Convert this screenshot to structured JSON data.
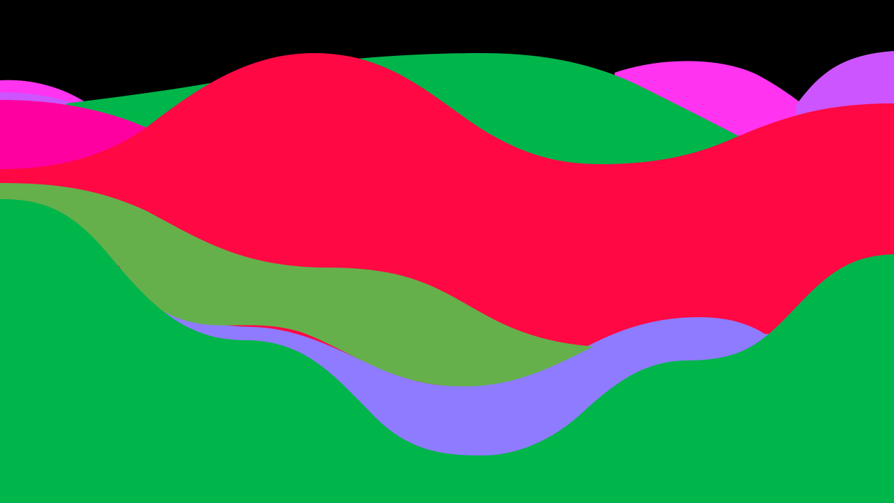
{
  "background_color": "#000000",
  "layers": [
    {
      "name": "magenta-wave-left",
      "color": "#ff33f0"
    },
    {
      "name": "violet-wave-left",
      "color": "#cc55ff"
    },
    {
      "name": "magenta-wave-right",
      "color": "#ff33f0"
    },
    {
      "name": "violet-wave-right",
      "color": "#cc55ff"
    },
    {
      "name": "green-wave-top",
      "color": "#00b54a"
    },
    {
      "name": "pink-wave-left",
      "color": "#ff00a0"
    },
    {
      "name": "red-wave",
      "color": "#ff0844"
    },
    {
      "name": "lavender-wave",
      "color": "#8f7bff"
    },
    {
      "name": "olive-green-wave",
      "color": "#65b04b"
    },
    {
      "name": "green-wave-bottom",
      "color": "#00b54a"
    }
  ]
}
